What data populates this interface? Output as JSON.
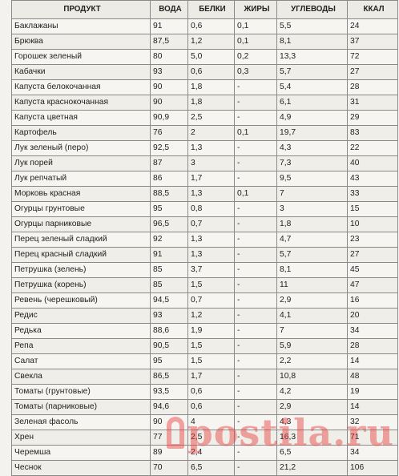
{
  "table": {
    "headers": [
      "ПРОДУКТ",
      "ВОДА",
      "БЕЛКИ",
      "ЖИРЫ",
      "УГЛЕВОДЫ",
      "ККАЛ"
    ],
    "rows": [
      [
        "Баклажаны",
        "91",
        "0,6",
        "0,1",
        "5,5",
        "24"
      ],
      [
        "Брюква",
        "87,5",
        "1,2",
        "0,1",
        "8,1",
        "37"
      ],
      [
        "Горошек зеленый",
        "80",
        "5,0",
        "0,2",
        "13,3",
        "72"
      ],
      [
        "Кабачки",
        "93",
        "0,6",
        "0,3",
        "5,7",
        "27"
      ],
      [
        "Капуста белокочанная",
        "90",
        "1,8",
        "-",
        "5,4",
        "28"
      ],
      [
        "Капуста краснокочанная",
        "90",
        "1,8",
        "-",
        "6,1",
        "31"
      ],
      [
        "Капуста цветная",
        "90,9",
        "2,5",
        "-",
        "4,9",
        "29"
      ],
      [
        "Картофель",
        "76",
        "2",
        "0,1",
        "19,7",
        "83"
      ],
      [
        "Лук зеленый (перо)",
        "92,5",
        "1,3",
        "-",
        "4,3",
        "22"
      ],
      [
        "Лук порей",
        "87",
        "3",
        "-",
        "7,3",
        "40"
      ],
      [
        "Лук репчатый",
        "86",
        "1,7",
        "-",
        "9,5",
        "43"
      ],
      [
        "Морковь красная",
        "88,5",
        "1,3",
        "0,1",
        "7",
        "33"
      ],
      [
        "Огурцы грунтовые",
        "95",
        "0,8",
        "-",
        "3",
        "15"
      ],
      [
        "Огурцы парниковые",
        "96,5",
        "0,7",
        "-",
        "1,8",
        "10"
      ],
      [
        "Перец зеленый сладкий",
        "92",
        "1,3",
        "-",
        "4,7",
        "23"
      ],
      [
        "Перец красный сладкий",
        "91",
        "1,3",
        "-",
        "5,7",
        "27"
      ],
      [
        "Петрушка (зелень)",
        "85",
        "3,7",
        "-",
        "8,1",
        "45"
      ],
      [
        "Петрушка (корень)",
        "85",
        "1,5",
        "-",
        "11",
        "47"
      ],
      [
        "Ревень (черешковый)",
        "94,5",
        "0,7",
        "-",
        "2,9",
        "16"
      ],
      [
        "Редис",
        "93",
        "1,2",
        "-",
        "4,1",
        "20"
      ],
      [
        "Редька",
        "88,6",
        "1,9",
        "-",
        "7",
        "34"
      ],
      [
        "Репа",
        "90,5",
        "1,5",
        "-",
        "5,9",
        "28"
      ],
      [
        "Салат",
        "95",
        "1,5",
        "-",
        "2,2",
        "14"
      ],
      [
        "Свекла",
        "86,5",
        "1,7",
        "-",
        "10,8",
        "48"
      ],
      [
        "Томаты (грунтовые)",
        "93,5",
        "0,6",
        "-",
        "4,2",
        "19"
      ],
      [
        "Томаты (парниковые)",
        "94,6",
        "0,6",
        "-",
        "2,9",
        "14"
      ],
      [
        "Зеленая фасоль",
        "90",
        "4",
        "-",
        "4,3",
        "32"
      ],
      [
        "Хрен",
        "77",
        "2,5",
        "-",
        "16,3",
        "71"
      ],
      [
        "Черемша",
        "89",
        "2,4",
        "-",
        "6,5",
        "34"
      ],
      [
        "Чеснок",
        "70",
        "6,5",
        "-",
        "21,2",
        "106"
      ]
    ]
  },
  "watermark": {
    "text": "postila.ru",
    "color": "#e63c3c"
  }
}
